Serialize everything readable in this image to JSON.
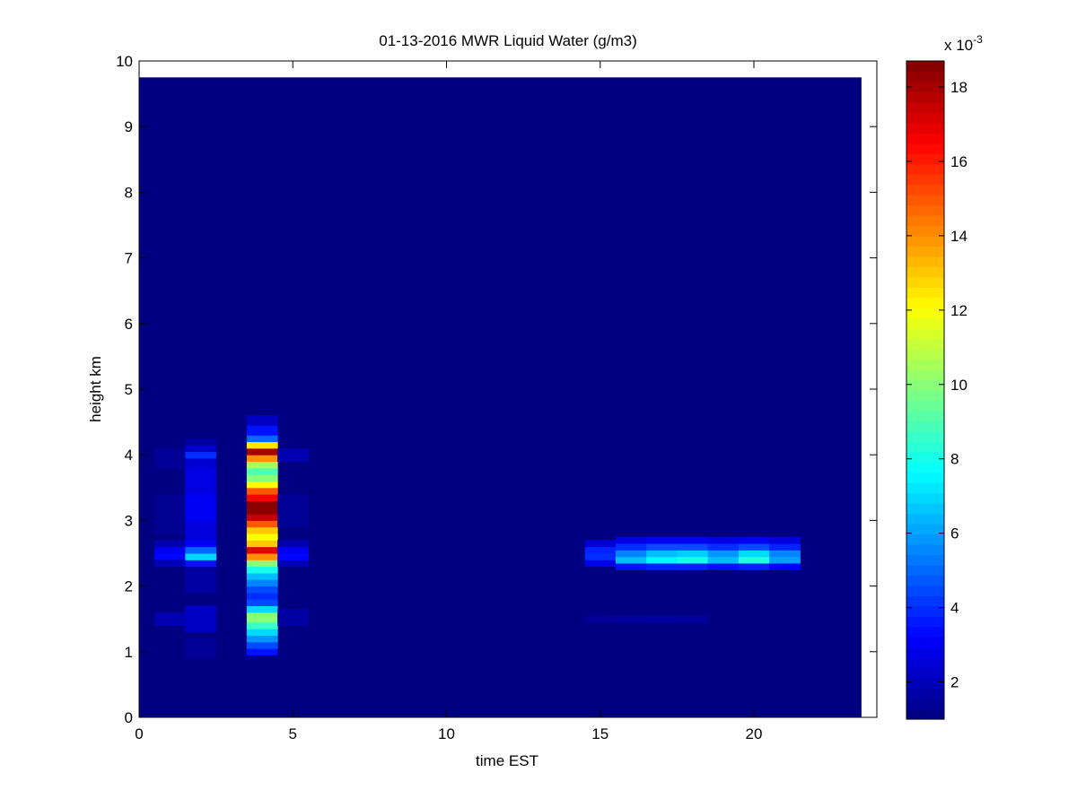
{
  "chart_data": {
    "type": "heatmap",
    "title": "01-13-2016 MWR Liquid Water (g/m3)",
    "xlabel": "time EST",
    "ylabel": "height km",
    "xlim": [
      0,
      24
    ],
    "ylim": [
      0,
      10
    ],
    "x_ticks": [
      0,
      5,
      10,
      15,
      20
    ],
    "y_ticks": [
      0,
      1,
      2,
      3,
      4,
      5,
      6,
      7,
      8,
      9,
      10
    ],
    "colorbar": {
      "clim": [
        1.0,
        18.7
      ],
      "ticks": [
        2,
        4,
        6,
        8,
        10,
        12,
        14,
        16,
        18
      ],
      "exponent_label": "x 10",
      "exponent": "-3",
      "colormap": "jet",
      "location": "right"
    },
    "background_value": 1.0,
    "data_extent": {
      "x": [
        0,
        23.5
      ],
      "y": [
        0,
        9.75
      ]
    },
    "columns": [
      {
        "x0": 0.5,
        "x1": 1.5,
        "cells": [
          {
            "y0": 1.4,
            "y1": 1.6,
            "v": 1.8
          },
          {
            "y0": 2.4,
            "y1": 2.5,
            "v": 3.3
          },
          {
            "y0": 2.5,
            "y1": 2.6,
            "v": 3.0
          },
          {
            "y0": 2.3,
            "y1": 2.4,
            "v": 2.0
          },
          {
            "y0": 2.6,
            "y1": 2.7,
            "v": 1.8
          },
          {
            "y0": 3.8,
            "y1": 4.1,
            "v": 1.4
          },
          {
            "y0": 2.8,
            "y1": 3.4,
            "v": 1.3
          }
        ]
      },
      {
        "x0": 1.5,
        "x1": 2.5,
        "cells": [
          {
            "y0": 0.9,
            "y1": 1.2,
            "v": 1.4
          },
          {
            "y0": 1.3,
            "y1": 1.7,
            "v": 2.2
          },
          {
            "y0": 1.9,
            "y1": 2.3,
            "v": 1.6
          },
          {
            "y0": 2.3,
            "y1": 2.4,
            "v": 3.5
          },
          {
            "y0": 2.4,
            "y1": 2.5,
            "v": 7.0
          },
          {
            "y0": 2.5,
            "y1": 2.6,
            "v": 5.0
          },
          {
            "y0": 2.6,
            "y1": 2.7,
            "v": 3.0
          },
          {
            "y0": 2.7,
            "y1": 3.0,
            "v": 2.6
          },
          {
            "y0": 3.0,
            "y1": 3.4,
            "v": 3.0
          },
          {
            "y0": 3.4,
            "y1": 3.8,
            "v": 2.7
          },
          {
            "y0": 3.8,
            "y1": 3.95,
            "v": 2.4
          },
          {
            "y0": 3.95,
            "y1": 4.05,
            "v": 4.0
          },
          {
            "y0": 4.05,
            "y1": 4.15,
            "v": 2.3
          },
          {
            "y0": 4.15,
            "y1": 4.25,
            "v": 1.6
          }
        ]
      },
      {
        "x0": 3.5,
        "x1": 4.5,
        "cells": [
          {
            "y0": 0.95,
            "y1": 1.05,
            "v": 3.5
          },
          {
            "y0": 1.05,
            "y1": 1.15,
            "v": 4.5
          },
          {
            "y0": 1.15,
            "y1": 1.25,
            "v": 5.8
          },
          {
            "y0": 1.25,
            "y1": 1.35,
            "v": 7.0
          },
          {
            "y0": 1.35,
            "y1": 1.45,
            "v": 8.6
          },
          {
            "y0": 1.45,
            "y1": 1.6,
            "v": 10.0
          },
          {
            "y0": 1.6,
            "y1": 1.7,
            "v": 7.0
          },
          {
            "y0": 1.7,
            "y1": 1.8,
            "v": 4.5
          },
          {
            "y0": 1.8,
            "y1": 1.9,
            "v": 4.0
          },
          {
            "y0": 1.9,
            "y1": 2.0,
            "v": 4.5
          },
          {
            "y0": 2.0,
            "y1": 2.1,
            "v": 5.5
          },
          {
            "y0": 2.1,
            "y1": 2.2,
            "v": 6.5
          },
          {
            "y0": 2.2,
            "y1": 2.3,
            "v": 8.0
          },
          {
            "y0": 2.3,
            "y1": 2.4,
            "v": 10.0
          },
          {
            "y0": 2.4,
            "y1": 2.5,
            "v": 14.0
          },
          {
            "y0": 2.5,
            "y1": 2.6,
            "v": 17.0
          },
          {
            "y0": 2.6,
            "y1": 2.7,
            "v": 13.0
          },
          {
            "y0": 2.7,
            "y1": 2.8,
            "v": 12.0
          },
          {
            "y0": 2.8,
            "y1": 2.9,
            "v": 13.0
          },
          {
            "y0": 2.9,
            "y1": 3.0,
            "v": 15.0
          },
          {
            "y0": 3.0,
            "y1": 3.1,
            "v": 17.5
          },
          {
            "y0": 3.1,
            "y1": 3.3,
            "v": 18.5
          },
          {
            "y0": 3.3,
            "y1": 3.4,
            "v": 16.5
          },
          {
            "y0": 3.4,
            "y1": 3.5,
            "v": 15.0
          },
          {
            "y0": 3.5,
            "y1": 3.6,
            "v": 12.0
          },
          {
            "y0": 3.6,
            "y1": 3.7,
            "v": 10.0
          },
          {
            "y0": 3.7,
            "y1": 3.8,
            "v": 9.0
          },
          {
            "y0": 3.8,
            "y1": 3.9,
            "v": 10.5
          },
          {
            "y0": 3.9,
            "y1": 4.0,
            "v": 14.0
          },
          {
            "y0": 4.0,
            "y1": 4.1,
            "v": 18.0
          },
          {
            "y0": 4.1,
            "y1": 4.2,
            "v": 12.5
          },
          {
            "y0": 4.2,
            "y1": 4.3,
            "v": 5.0
          },
          {
            "y0": 4.3,
            "y1": 4.45,
            "v": 3.5
          },
          {
            "y0": 4.45,
            "y1": 4.6,
            "v": 2.2
          }
        ]
      },
      {
        "x0": 4.5,
        "x1": 5.5,
        "cells": [
          {
            "y0": 1.4,
            "y1": 1.65,
            "v": 1.6
          },
          {
            "y0": 2.3,
            "y1": 2.4,
            "v": 2.0
          },
          {
            "y0": 2.4,
            "y1": 2.5,
            "v": 3.3
          },
          {
            "y0": 2.5,
            "y1": 2.6,
            "v": 3.0
          },
          {
            "y0": 2.6,
            "y1": 2.7,
            "v": 1.8
          },
          {
            "y0": 2.9,
            "y1": 3.4,
            "v": 1.4
          },
          {
            "y0": 3.9,
            "y1": 4.1,
            "v": 1.8
          }
        ]
      },
      {
        "x0": 14.5,
        "x1": 15.5,
        "cells": [
          {
            "y0": 1.45,
            "y1": 1.55,
            "v": 1.4
          },
          {
            "y0": 2.3,
            "y1": 2.4,
            "v": 2.8
          },
          {
            "y0": 2.4,
            "y1": 2.5,
            "v": 4.0
          },
          {
            "y0": 2.5,
            "y1": 2.6,
            "v": 3.8
          },
          {
            "y0": 2.6,
            "y1": 2.7,
            "v": 2.5
          }
        ]
      },
      {
        "x0": 15.5,
        "x1": 16.5,
        "cells": [
          {
            "y0": 1.45,
            "y1": 1.55,
            "v": 1.5
          },
          {
            "y0": 2.25,
            "y1": 2.35,
            "v": 3.5
          },
          {
            "y0": 2.35,
            "y1": 2.45,
            "v": 6.5
          },
          {
            "y0": 2.45,
            "y1": 2.55,
            "v": 5.5
          },
          {
            "y0": 2.55,
            "y1": 2.65,
            "v": 4.0
          },
          {
            "y0": 2.65,
            "y1": 2.75,
            "v": 2.8
          }
        ]
      },
      {
        "x0": 16.5,
        "x1": 17.5,
        "cells": [
          {
            "y0": 1.45,
            "y1": 1.55,
            "v": 1.6
          },
          {
            "y0": 2.25,
            "y1": 2.35,
            "v": 3.8
          },
          {
            "y0": 2.35,
            "y1": 2.45,
            "v": 7.5
          },
          {
            "y0": 2.45,
            "y1": 2.55,
            "v": 6.5
          },
          {
            "y0": 2.55,
            "y1": 2.65,
            "v": 4.5
          },
          {
            "y0": 2.65,
            "y1": 2.75,
            "v": 3.0
          }
        ]
      },
      {
        "x0": 17.5,
        "x1": 18.5,
        "cells": [
          {
            "y0": 1.45,
            "y1": 1.55,
            "v": 1.5
          },
          {
            "y0": 2.25,
            "y1": 2.35,
            "v": 3.8
          },
          {
            "y0": 2.35,
            "y1": 2.45,
            "v": 8.0
          },
          {
            "y0": 2.45,
            "y1": 2.55,
            "v": 6.8
          },
          {
            "y0": 2.55,
            "y1": 2.65,
            "v": 4.5
          },
          {
            "y0": 2.65,
            "y1": 2.75,
            "v": 3.0
          }
        ]
      },
      {
        "x0": 18.5,
        "x1": 19.5,
        "cells": [
          {
            "y0": 2.25,
            "y1": 2.35,
            "v": 3.5
          },
          {
            "y0": 2.35,
            "y1": 2.45,
            "v": 6.5
          },
          {
            "y0": 2.45,
            "y1": 2.55,
            "v": 5.8
          },
          {
            "y0": 2.55,
            "y1": 2.65,
            "v": 4.0
          },
          {
            "y0": 2.65,
            "y1": 2.75,
            "v": 2.8
          }
        ]
      },
      {
        "x0": 19.5,
        "x1": 20.5,
        "cells": [
          {
            "y0": 2.25,
            "y1": 2.35,
            "v": 3.8
          },
          {
            "y0": 2.35,
            "y1": 2.45,
            "v": 8.2
          },
          {
            "y0": 2.45,
            "y1": 2.55,
            "v": 7.0
          },
          {
            "y0": 2.55,
            "y1": 2.65,
            "v": 4.5
          },
          {
            "y0": 2.65,
            "y1": 2.75,
            "v": 3.0
          }
        ]
      },
      {
        "x0": 20.5,
        "x1": 21.5,
        "cells": [
          {
            "y0": 2.25,
            "y1": 2.35,
            "v": 3.2
          },
          {
            "y0": 2.35,
            "y1": 2.45,
            "v": 6.0
          },
          {
            "y0": 2.45,
            "y1": 2.55,
            "v": 5.5
          },
          {
            "y0": 2.55,
            "y1": 2.65,
            "v": 3.8
          },
          {
            "y0": 2.65,
            "y1": 2.75,
            "v": 2.6
          }
        ]
      }
    ]
  }
}
